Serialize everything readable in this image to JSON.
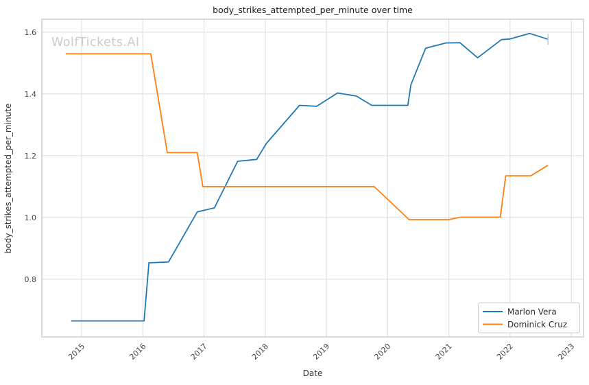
{
  "chart_data": {
    "type": "line",
    "title": "body_strikes_attempted_per_minute over time",
    "watermark": "WolfTickets.AI",
    "xlabel": "Date",
    "ylabel": "body_strikes_attempted_per_minute",
    "xlim": [
      2014.35,
      2023.2
    ],
    "ylim": [
      0.613,
      1.642
    ],
    "x_ticks": [
      "2015",
      "2016",
      "2017",
      "2018",
      "2019",
      "2020",
      "2021",
      "2022",
      "2023"
    ],
    "x_tick_values": [
      2015,
      2016,
      2017,
      2018,
      2019,
      2020,
      2021,
      2022,
      2023
    ],
    "y_ticks": [
      "0.8",
      "1.0",
      "1.2",
      "1.4",
      "1.6"
    ],
    "y_tick_values": [
      0.8,
      1.0,
      1.2,
      1.4,
      1.6
    ],
    "grid": true,
    "legend_position": "lower right",
    "series": [
      {
        "name": "Marlon Vera",
        "color": "#1f77b4",
        "end_tick_marker": true,
        "points": [
          [
            2014.83,
            0.665
          ],
          [
            2016.02,
            0.665
          ],
          [
            2016.1,
            0.853
          ],
          [
            2016.42,
            0.856
          ],
          [
            2016.89,
            1.018
          ],
          [
            2017.17,
            1.031
          ],
          [
            2017.55,
            1.182
          ],
          [
            2017.86,
            1.188
          ],
          [
            2018.02,
            1.24
          ],
          [
            2018.56,
            1.363
          ],
          [
            2018.84,
            1.36
          ],
          [
            2019.18,
            1.403
          ],
          [
            2019.49,
            1.393
          ],
          [
            2019.74,
            1.363
          ],
          [
            2020.33,
            1.363
          ],
          [
            2020.38,
            1.43
          ],
          [
            2020.62,
            1.548
          ],
          [
            2020.95,
            1.565
          ],
          [
            2021.18,
            1.566
          ],
          [
            2021.47,
            1.517
          ],
          [
            2021.86,
            1.576
          ],
          [
            2022.0,
            1.578
          ],
          [
            2022.32,
            1.596
          ],
          [
            2022.62,
            1.577
          ]
        ]
      },
      {
        "name": "Dominick Cruz",
        "color": "#ff7f0e",
        "end_tick_marker": false,
        "points": [
          [
            2014.74,
            1.53
          ],
          [
            2016.13,
            1.53
          ],
          [
            2016.4,
            1.21
          ],
          [
            2016.89,
            1.21
          ],
          [
            2016.98,
            1.1
          ],
          [
            2019.78,
            1.1
          ],
          [
            2020.35,
            0.993
          ],
          [
            2021.0,
            0.993
          ],
          [
            2021.2,
            1.001
          ],
          [
            2021.84,
            1.001
          ],
          [
            2021.93,
            1.135
          ],
          [
            2022.34,
            1.135
          ],
          [
            2022.62,
            1.169
          ]
        ]
      }
    ]
  },
  "colors": {
    "background": "#ffffff",
    "grid": "#d9d9d9",
    "spine": "#bdbdbd",
    "tick_text": "#444444",
    "label_text": "#333333",
    "title_text": "#1a1a1a",
    "watermark": "#cbcbcb",
    "legend_border": "#cccccc",
    "legend_text": "#2b2b2b",
    "end_marker": "#a9cbe5"
  }
}
